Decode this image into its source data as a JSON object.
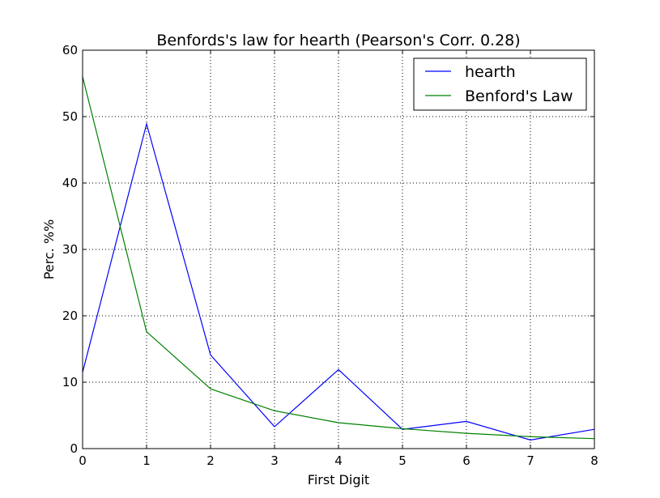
{
  "chart_data": {
    "type": "line",
    "title": "Benfords's law for hearth (Pearson's Corr. 0.28)",
    "xlabel": "First Digit",
    "ylabel": "Perc. %%",
    "xlim": [
      0,
      8
    ],
    "ylim": [
      0,
      60
    ],
    "xticks": [
      0,
      1,
      2,
      3,
      4,
      5,
      6,
      7,
      8
    ],
    "yticks": [
      0,
      10,
      20,
      30,
      40,
      50,
      60
    ],
    "grid": true,
    "legend_position": "top-right",
    "x": [
      0,
      1,
      2,
      3,
      4,
      5,
      6,
      7,
      8
    ],
    "series": [
      {
        "name": "hearth",
        "color": "#0000ff",
        "values": [
          11.5,
          48.9,
          14.1,
          3.3,
          11.9,
          2.9,
          4.1,
          1.3,
          2.9
        ]
      },
      {
        "name": "Benford's Law",
        "color": "#008000",
        "values": [
          56.0,
          17.6,
          9.0,
          5.7,
          3.9,
          3.0,
          2.3,
          1.8,
          1.5
        ]
      }
    ]
  }
}
